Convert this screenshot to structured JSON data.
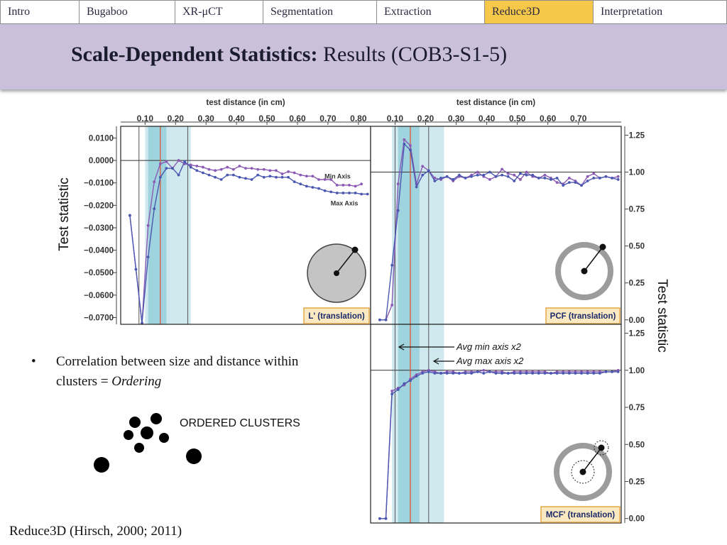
{
  "nav": {
    "tabs": [
      {
        "label": "Intro",
        "active": false
      },
      {
        "label": "Bugaboo",
        "active": false
      },
      {
        "label": "XR-μCT",
        "active": false
      },
      {
        "label": "Segmentation",
        "active": false
      },
      {
        "label": "Extraction",
        "active": false
      },
      {
        "label": "Reduce3D",
        "active": true
      },
      {
        "label": "Interpretation",
        "active": false
      }
    ]
  },
  "header": {
    "title_bold": "Scale-Dependent Statistics:",
    "title_rest": " Results (COB3-S1-5)"
  },
  "labels": {
    "y_left": "Test statistic",
    "y_right": "Test statistic",
    "annot_min": "Avg min axis x2",
    "annot_max": "Avg max axis x2"
  },
  "bullet": {
    "text": "Correlation between size and distance within clusters = ",
    "emph": "Ordering"
  },
  "clusters": {
    "label": "ORDERED CLUSTERS"
  },
  "footer": {
    "citation": "Reduce3D (Hirsch, 2000; 2011)"
  },
  "colors": {
    "min_axis": "#8a5ab4",
    "max_axis": "#4a58b0",
    "band_light": "#cfe9ef",
    "band_dark": "#9fd3dd",
    "red_line": "#d9583a",
    "label_box": "#fbe9c2",
    "label_border": "#e3a84a",
    "active_tab": "#f6c84a",
    "banner": "#cac0dc"
  },
  "chart_data": [
    {
      "type": "line",
      "x_title": "test distance (in cm)",
      "xlim": [
        0.02,
        0.84
      ],
      "ylim": [
        -0.073,
        0.0152
      ],
      "x_ticks": [
        "0.10",
        "0.20",
        "0.30",
        "0.40",
        "0.50",
        "0.60",
        "0.70",
        "0.80"
      ],
      "y_ticks": [
        "0.0100",
        "0.0000",
        "−0.0100",
        "−0.0200",
        "−0.0300",
        "−0.0400",
        "−0.0500",
        "−0.0600",
        "−0.0700"
      ],
      "y_axis_side": "left",
      "reference_y": 0,
      "badge": "L' (translation)",
      "icon": "disk",
      "band_light": [
        0.1,
        0.25
      ],
      "band_dark": [
        0.11,
        0.17
      ],
      "red_line": 0.15,
      "gray_lines": [
        0.08,
        0.24
      ],
      "series": [
        {
          "name": "Min Axis",
          "x": [
            0.05,
            0.07,
            0.09,
            0.11,
            0.13,
            0.15,
            0.17,
            0.19,
            0.21,
            0.23,
            0.25,
            0.27,
            0.29,
            0.31,
            0.33,
            0.35,
            0.37,
            0.39,
            0.41,
            0.43,
            0.45,
            0.47,
            0.49,
            0.51,
            0.53,
            0.55,
            0.57,
            0.59,
            0.61,
            0.63,
            0.65,
            0.67,
            0.69,
            0.71,
            0.73,
            0.75,
            0.77,
            0.79,
            0.81
          ],
          "y": [
            -0.0245,
            -0.0485,
            -0.0725,
            -0.029,
            -0.0095,
            -0.0015,
            -0.0005,
            -0.0035,
            0.0,
            -0.0015,
            -0.002,
            -0.0025,
            -0.003,
            -0.004,
            -0.0045,
            -0.004,
            -0.003,
            -0.004,
            -0.0025,
            -0.0035,
            -0.0035,
            -0.004,
            -0.004,
            -0.0045,
            -0.0045,
            -0.006,
            -0.005,
            -0.0055,
            -0.0065,
            -0.007,
            -0.007,
            -0.0085,
            -0.0085,
            -0.0085,
            -0.011,
            -0.011,
            -0.011,
            -0.0115,
            -0.0105
          ]
        },
        {
          "name": "Max Axis",
          "x": [
            0.05,
            0.07,
            0.09,
            0.11,
            0.13,
            0.15,
            0.17,
            0.19,
            0.21,
            0.23,
            0.25,
            0.27,
            0.29,
            0.31,
            0.33,
            0.35,
            0.37,
            0.39,
            0.41,
            0.43,
            0.45,
            0.47,
            0.49,
            0.51,
            0.53,
            0.55,
            0.57,
            0.59,
            0.61,
            0.63,
            0.65,
            0.67,
            0.69,
            0.71,
            0.73,
            0.75,
            0.77,
            0.79,
            0.81,
            0.83
          ],
          "y": [
            -0.0245,
            -0.0485,
            -0.0725,
            -0.043,
            -0.0215,
            -0.0075,
            -0.0035,
            -0.0035,
            -0.0065,
            -0.0005,
            -0.003,
            -0.0045,
            -0.0055,
            -0.0065,
            -0.0075,
            -0.0085,
            -0.0065,
            -0.0065,
            -0.0075,
            -0.008,
            -0.0085,
            -0.0065,
            -0.0075,
            -0.007,
            -0.0075,
            -0.0075,
            -0.0075,
            -0.0095,
            -0.0105,
            -0.0115,
            -0.012,
            -0.0125,
            -0.0135,
            -0.014,
            -0.0145,
            -0.0145,
            -0.0145,
            -0.0145,
            -0.015,
            -0.015
          ]
        }
      ],
      "legend": "right, at line ends"
    },
    {
      "type": "line",
      "x_title": "test distance (in cm)",
      "xlim": [
        0.02,
        0.84
      ],
      "ylim": [
        -0.03,
        1.31
      ],
      "x_ticks": [
        "0.10",
        "0.20",
        "0.30",
        "0.40",
        "0.50",
        "0.60",
        "0.70"
      ],
      "y_ticks": [
        "1.25",
        "1.00",
        "0.75",
        "0.50",
        "0.25",
        "0.00"
      ],
      "y_axis_side": "right",
      "reference_y": 1.0,
      "badge": "PCF (translation)",
      "icon": "ring",
      "band_light": [
        0.09,
        0.26
      ],
      "band_dark": [
        0.11,
        0.18
      ],
      "red_line": 0.15,
      "gray_lines": [
        0.1,
        0.21
      ],
      "series": [
        {
          "name": "Min Axis",
          "x": [
            0.05,
            0.07,
            0.09,
            0.11,
            0.13,
            0.15,
            0.17,
            0.19,
            0.21,
            0.23,
            0.25,
            0.27,
            0.29,
            0.31,
            0.33,
            0.35,
            0.37,
            0.39,
            0.41,
            0.43,
            0.45,
            0.47,
            0.49,
            0.51,
            0.53,
            0.55,
            0.57,
            0.59,
            0.61,
            0.63,
            0.65,
            0.67,
            0.69,
            0.71,
            0.73,
            0.75,
            0.77,
            0.79,
            0.81,
            0.83
          ],
          "y": [
            0.0,
            0.0,
            0.1,
            0.92,
            1.22,
            1.18,
            0.92,
            1.04,
            1.01,
            0.96,
            0.95,
            0.97,
            0.94,
            0.97,
            0.96,
            0.98,
            1.0,
            0.97,
            0.95,
            0.97,
            1.02,
            0.99,
            0.98,
            0.95,
            1.0,
            0.97,
            0.96,
            0.98,
            0.96,
            0.93,
            0.92,
            0.96,
            0.94,
            0.91,
            0.97,
            0.99,
            0.96,
            0.97,
            0.96,
            0.97
          ]
        },
        {
          "name": "Max Axis",
          "x": [
            0.05,
            0.07,
            0.09,
            0.11,
            0.13,
            0.15,
            0.17,
            0.19,
            0.21,
            0.23,
            0.25,
            0.27,
            0.29,
            0.31,
            0.33,
            0.35,
            0.37,
            0.39,
            0.41,
            0.43,
            0.45,
            0.47,
            0.49,
            0.51,
            0.53,
            0.55,
            0.57,
            0.59,
            0.61,
            0.63,
            0.65,
            0.67,
            0.69,
            0.71,
            0.73,
            0.75,
            0.77,
            0.79,
            0.81,
            0.83
          ],
          "y": [
            0.0,
            0.0,
            0.37,
            0.74,
            1.19,
            1.15,
            0.9,
            0.98,
            1.01,
            0.94,
            0.96,
            0.97,
            0.95,
            0.98,
            0.96,
            0.97,
            0.98,
            0.98,
            1.0,
            0.97,
            0.98,
            0.97,
            0.94,
            0.99,
            0.98,
            0.98,
            0.96,
            0.96,
            0.95,
            0.96,
            0.91,
            0.93,
            0.93,
            0.91,
            0.94,
            0.96,
            0.96,
            0.97,
            0.96,
            0.95
          ]
        }
      ]
    },
    {
      "type": "line",
      "xlim": [
        0.02,
        0.84
      ],
      "ylim": [
        -0.03,
        1.31
      ],
      "y_ticks": [
        "1.25",
        "1.00",
        "0.75",
        "0.50",
        "0.25",
        "0.00"
      ],
      "y_axis_side": "right",
      "reference_y": 1.0,
      "badge": "MCF' (translation)",
      "icon": "ring-mark",
      "band_light": [
        0.09,
        0.26
      ],
      "band_dark": [
        0.11,
        0.18
      ],
      "red_line": 0.15,
      "gray_lines": [
        0.1,
        0.21
      ],
      "series": [
        {
          "name": "Min Axis",
          "x": [
            0.05,
            0.07,
            0.09,
            0.11,
            0.13,
            0.15,
            0.17,
            0.19,
            0.21,
            0.23,
            0.25,
            0.27,
            0.29,
            0.31,
            0.33,
            0.35,
            0.37,
            0.39,
            0.41,
            0.43,
            0.45,
            0.47,
            0.49,
            0.51,
            0.53,
            0.55,
            0.57,
            0.59,
            0.61,
            0.63,
            0.65,
            0.67,
            0.69,
            0.71,
            0.73,
            0.75,
            0.77,
            0.79,
            0.81,
            0.83
          ],
          "y": [
            0.0,
            0.0,
            0.86,
            0.88,
            0.9,
            0.94,
            0.97,
            0.99,
            1.0,
            0.99,
            0.98,
            0.99,
            0.99,
            0.98,
            0.99,
            0.99,
            0.99,
            1.0,
            0.99,
            0.99,
            0.99,
            0.98,
            0.99,
            0.99,
            0.99,
            0.99,
            0.99,
            0.99,
            0.98,
            0.99,
            0.99,
            0.99,
            0.99,
            0.99,
            0.99,
            0.99,
            0.99,
            0.99,
            0.99,
            1.0
          ]
        },
        {
          "name": "Max Axis",
          "x": [
            0.05,
            0.07,
            0.09,
            0.11,
            0.13,
            0.15,
            0.17,
            0.19,
            0.21,
            0.23,
            0.25,
            0.27,
            0.29,
            0.31,
            0.33,
            0.35,
            0.37,
            0.39,
            0.41,
            0.43,
            0.45,
            0.47,
            0.49,
            0.51,
            0.53,
            0.55,
            0.57,
            0.59,
            0.61,
            0.63,
            0.65,
            0.67,
            0.69,
            0.71,
            0.73,
            0.75,
            0.77,
            0.79,
            0.81,
            0.83
          ],
          "y": [
            0.0,
            0.0,
            0.84,
            0.87,
            0.91,
            0.93,
            0.96,
            0.98,
            0.99,
            0.98,
            0.98,
            0.98,
            0.98,
            0.98,
            0.98,
            0.98,
            0.99,
            0.98,
            0.99,
            0.98,
            0.98,
            0.98,
            0.98,
            0.98,
            0.98,
            0.98,
            0.98,
            0.98,
            0.98,
            0.98,
            0.98,
            0.98,
            0.98,
            0.98,
            0.98,
            0.98,
            0.98,
            0.99,
            0.99,
            0.99
          ]
        }
      ]
    }
  ]
}
